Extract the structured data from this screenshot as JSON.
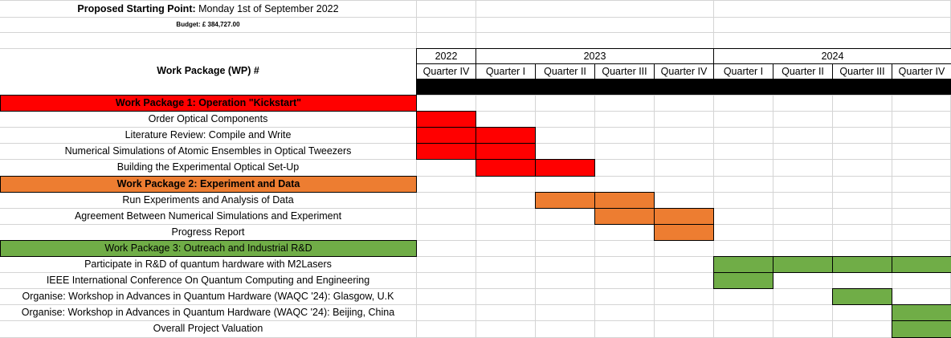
{
  "header": {
    "start_label": "Proposed Starting Point:",
    "start_value": "Monday 1st of September 2022",
    "budget": "Budget: £ 384,727.00",
    "wp_column_title": "Work Package (WP) #"
  },
  "years": [
    "2022",
    "2023",
    "2024"
  ],
  "quarters": [
    "Quarter IV",
    "Quarter I",
    "Quarter II",
    "Quarter III",
    "Quarter IV",
    "Quarter I",
    "Quarter II",
    "Quarter III",
    "Quarter IV"
  ],
  "colors": {
    "wp1": "#ff0000",
    "wp2": "#ed7d31",
    "wp3": "#70ad47",
    "divider": "#000000"
  },
  "rows": [
    {
      "label": "Work Package 1: Operation \"Kickstart\"",
      "type": "wp",
      "color": "wp1",
      "active_quarters": []
    },
    {
      "label": "Order Optical Components",
      "type": "task",
      "color": "wp1",
      "active_quarters": [
        0
      ]
    },
    {
      "label": "Literature Review: Compile and Write",
      "type": "task",
      "color": "wp1",
      "active_quarters": [
        0,
        1
      ]
    },
    {
      "label": "Numerical Simulations of Atomic Ensembles in Optical Tweezers",
      "type": "task",
      "color": "wp1",
      "active_quarters": [
        0,
        1
      ]
    },
    {
      "label": "Building the Experimental Optical Set-Up",
      "type": "task",
      "color": "wp1",
      "active_quarters": [
        1,
        2
      ]
    },
    {
      "label": "Work Package 2: Experiment and Data",
      "type": "wp",
      "color": "wp2",
      "active_quarters": []
    },
    {
      "label": "Run Experiments and Analysis of Data",
      "type": "task",
      "color": "wp2",
      "active_quarters": [
        2,
        3
      ]
    },
    {
      "label": "Agreement Between Numerical Simulations and Experiment",
      "type": "task",
      "color": "wp2",
      "active_quarters": [
        3,
        4
      ]
    },
    {
      "label": "Progress Report",
      "type": "task",
      "color": "wp2",
      "active_quarters": [
        4
      ]
    },
    {
      "label": "Work Package 3: Outreach and Industrial R&D",
      "type": "wp",
      "color": "wp3",
      "active_quarters": []
    },
    {
      "label": "Participate in R&D of quantum hardware with M2Lasers",
      "type": "task",
      "color": "wp3",
      "active_quarters": [
        5,
        6,
        7,
        8
      ]
    },
    {
      "label": "IEEE International Conference On Quantum Computing and Engineering",
      "type": "task",
      "color": "wp3",
      "active_quarters": [
        5
      ]
    },
    {
      "label": "Organise: Workshop in Advances in Quantum Hardware (WAQC '24): Glasgow, U.K",
      "type": "task",
      "color": "wp3",
      "active_quarters": [
        7
      ]
    },
    {
      "label": "Organise: Workshop in Advances in Quantum Hardware (WAQC '24): Beijing, China",
      "type": "task",
      "color": "wp3",
      "active_quarters": [
        8
      ]
    },
    {
      "label": "Overall Project Valuation",
      "type": "task",
      "color": "wp3",
      "active_quarters": [
        8
      ]
    }
  ]
}
